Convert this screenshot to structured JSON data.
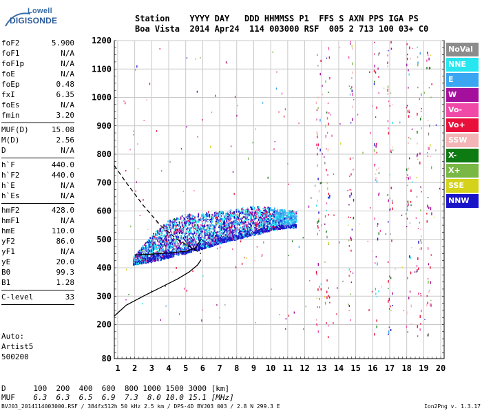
{
  "logo": {
    "top": "Lowell",
    "bottom": "DIGISONDE"
  },
  "header": {
    "line1": "Station    YYYY DAY   DDD HHMMSS P1  FFS S AXN PPS IGA PS",
    "line2": "Boa Vista  2014 Apr24  114 003000 RSF  005 2 713 100 03+ C0"
  },
  "params": {
    "group1": [
      {
        "label": "foF2",
        "value": "5.900"
      },
      {
        "label": "foF1",
        "value": "N/A"
      },
      {
        "label": "foF1p",
        "value": "N/A"
      },
      {
        "label": "foE",
        "value": "N/A"
      },
      {
        "label": "foEp",
        "value": "0.48"
      },
      {
        "label": "fxI",
        "value": "6.35"
      },
      {
        "label": "foEs",
        "value": "N/A"
      },
      {
        "label": "fmin",
        "value": "3.20"
      }
    ],
    "group2": [
      {
        "label": "MUF(D)",
        "value": "15.08"
      },
      {
        "label": "M(D)",
        "value": "2.56"
      },
      {
        "label": "D",
        "value": "N/A"
      }
    ],
    "group3": [
      {
        "label": "h`F",
        "value": "440.0"
      },
      {
        "label": "h`F2",
        "value": "440.0"
      },
      {
        "label": "h`E",
        "value": "N/A"
      },
      {
        "label": "h`Es",
        "value": "N/A"
      }
    ],
    "group4": [
      {
        "label": "hmF2",
        "value": "428.0"
      },
      {
        "label": "hmF1",
        "value": "N/A"
      },
      {
        "label": "hmE",
        "value": "110.0"
      },
      {
        "label": "yF2",
        "value": "86.0"
      },
      {
        "label": "yF1",
        "value": "N/A"
      },
      {
        "label": "yE",
        "value": "20.0"
      },
      {
        "label": "B0",
        "value": "99.3"
      },
      {
        "label": "B1",
        "value": "1.28"
      }
    ],
    "group5": [
      {
        "label": "C-level",
        "value": "33"
      }
    ]
  },
  "auto": {
    "line1": "Auto:",
    "line2": "Artist5",
    "line3": "500200"
  },
  "legend": [
    {
      "label": "NoVal",
      "color": "#8c8c8c"
    },
    {
      "label": "NNE",
      "color": "#26e6f0"
    },
    {
      "label": "E",
      "color": "#3aa6f2"
    },
    {
      "label": "W",
      "color": "#a4109c"
    },
    {
      "label": "Vo-",
      "color": "#f04aa8"
    },
    {
      "label": "Vo+",
      "color": "#e8103a"
    },
    {
      "label": "SSW",
      "color": "#f2b4b4"
    },
    {
      "label": "X-",
      "color": "#0e7a12"
    },
    {
      "label": "X+",
      "color": "#7ab846"
    },
    {
      "label": "SSE",
      "color": "#d4d21a"
    },
    {
      "label": "NNW",
      "color": "#1a14c8"
    }
  ],
  "d_row": {
    "label": "D",
    "values": "100  200  400  600  800 1000 1500 3000 [km]"
  },
  "muf_row": {
    "label": "MUF",
    "values": "6.3  6.3  6.5  6.9  7.3  8.0 10.0 15.1 [MHz]"
  },
  "footer": {
    "left": "BVJ03_2014114003000.RSF / 384fx512h 50 kHz 2.5 km / DPS-4D BVJ03 003 / 2.8 N 299.3 E",
    "right": "Ion2Png v. 1.3.17"
  },
  "chart_data": {
    "type": "scatter",
    "xlim": [
      0.8,
      20.2
    ],
    "ylim": [
      80,
      1200
    ],
    "x_ticks": [
      1,
      2,
      3,
      4,
      5,
      6,
      7,
      8,
      9,
      10,
      11,
      12,
      13,
      14,
      15,
      16,
      17,
      18,
      19,
      20
    ],
    "y_ticks": [
      200,
      300,
      400,
      500,
      600,
      700,
      800,
      900,
      1000,
      1100,
      1200
    ],
    "y_tick_labels": [
      "200",
      "300",
      "400",
      "500",
      "600",
      "700",
      "800",
      "900",
      "1000",
      "1100",
      "1200"
    ],
    "y_bottom_label": "80",
    "grid": true,
    "ionogram_trace": {
      "x_range": [
        1.9,
        11.5
      ],
      "lower_edge": [
        [
          1.9,
          415
        ],
        [
          3,
          425
        ],
        [
          4,
          440
        ],
        [
          5,
          455
        ],
        [
          6,
          470
        ],
        [
          7,
          490
        ],
        [
          8,
          505
        ],
        [
          9,
          520
        ],
        [
          10,
          535
        ],
        [
          11,
          545
        ]
      ],
      "upper_edge": [
        [
          1.9,
          440
        ],
        [
          3,
          520
        ],
        [
          4,
          570
        ],
        [
          5,
          590
        ],
        [
          6,
          595
        ],
        [
          7,
          600
        ],
        [
          8,
          610
        ],
        [
          9,
          620
        ],
        [
          10,
          615
        ],
        [
          11.5,
          600
        ]
      ]
    },
    "profile_solid": [
      [
        0.8,
        230
      ],
      [
        1.5,
        268
      ],
      [
        2.5,
        300
      ],
      [
        3.5,
        330
      ],
      [
        4.5,
        360
      ],
      [
        5.2,
        385
      ],
      [
        5.7,
        410
      ],
      [
        5.9,
        428
      ]
    ],
    "profile_dashed": [
      [
        0.8,
        760
      ],
      [
        1.5,
        700
      ],
      [
        2.5,
        620
      ],
      [
        3.5,
        550
      ],
      [
        4.5,
        500
      ],
      [
        5.5,
        465
      ],
      [
        5.9,
        450
      ]
    ],
    "fitted_trace": [
      [
        2,
        445
      ],
      [
        3,
        448
      ],
      [
        4,
        452
      ],
      [
        5,
        458
      ],
      [
        5.6,
        470
      ],
      [
        5.9,
        500
      ]
    ],
    "right_noise_columns": [
      12.8,
      13.3,
      14.7,
      16.2,
      17.0,
      18.1,
      18.7,
      19.3
    ]
  }
}
